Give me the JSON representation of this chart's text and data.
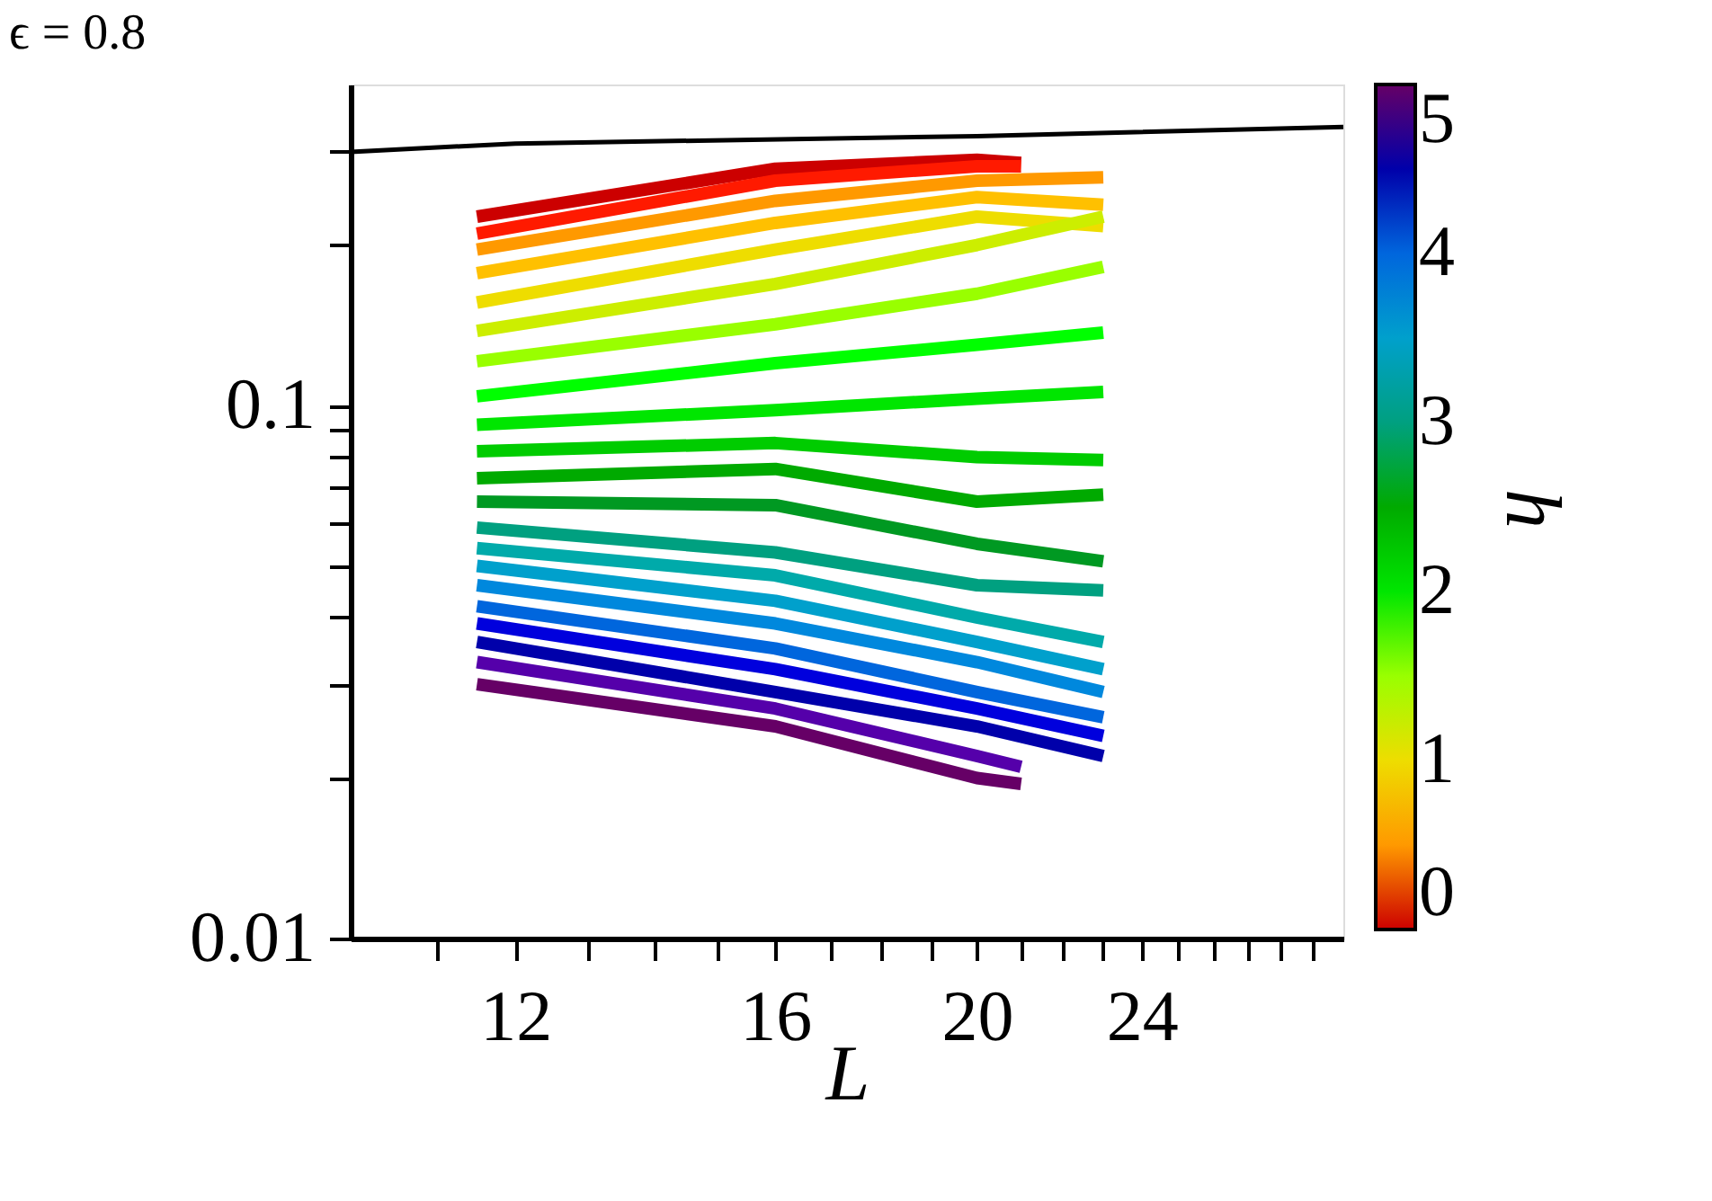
{
  "chart_data": {
    "type": "line",
    "title": "ϵ = 0.8",
    "xlabel": "L",
    "clabel": "h",
    "clim": [
      0,
      5
    ],
    "cticks": [
      0,
      1,
      2,
      3,
      4,
      5
    ],
    "log": "xy",
    "xlim": [
      10,
      30
    ],
    "ylim": [
      0.01,
      0.4
    ],
    "grid": false,
    "marker": "none",
    "line_style": "solid",
    "xticks": [
      {
        "value": 11,
        "label": null
      },
      12,
      {
        "value": 13,
        "label": null
      },
      {
        "value": 14,
        "label": null
      },
      {
        "value": 15,
        "label": null
      },
      16,
      {
        "value": 17,
        "label": null
      },
      {
        "value": 18,
        "label": null
      },
      {
        "value": 19,
        "label": null
      },
      20,
      {
        "value": 21,
        "label": null
      },
      {
        "value": 22,
        "label": null
      },
      {
        "value": 23,
        "label": null
      },
      24,
      {
        "value": 25,
        "label": null
      },
      {
        "value": 26,
        "label": null
      },
      {
        "value": 27,
        "label": null
      },
      {
        "value": 28,
        "label": null
      },
      {
        "value": 29,
        "label": null
      }
    ],
    "yticks": [
      0.01,
      {
        "value": 0.02,
        "label": null
      },
      {
        "value": 0.03,
        "label": null
      },
      {
        "value": 0.04,
        "label": null
      },
      {
        "value": 0.05,
        "label": null
      },
      {
        "value": 0.06,
        "label": null
      },
      {
        "value": 0.07,
        "label": null
      },
      {
        "value": 0.08,
        "label": null
      },
      {
        "value": 0.09,
        "label": null
      },
      0.1,
      {
        "value": 0.2,
        "label": null
      },
      {
        "value": 0.3,
        "label": null
      }
    ],
    "series": [
      {
        "color": "#000000",
        "x": [
          10,
          12,
          20,
          30
        ],
        "values": [
          0.299,
          0.31,
          0.32,
          0.333
        ]
      },
      {
        "color": "#cc0000",
        "x": [
          11.5,
          16,
          20,
          21
        ],
        "values": [
          0.226,
          0.278,
          0.289,
          0.285
        ]
      },
      {
        "color": "#ff1a00",
        "x": [
          11.5,
          16,
          20,
          21
        ],
        "values": [
          0.21,
          0.264,
          0.281,
          0.281
        ]
      },
      {
        "color": "#ff9900",
        "x": [
          11.5,
          16,
          20,
          23
        ],
        "values": [
          0.196,
          0.242,
          0.264,
          0.268
        ]
      },
      {
        "color": "#ffc000",
        "x": [
          11.5,
          16,
          20,
          23
        ],
        "values": [
          0.177,
          0.22,
          0.246,
          0.238
        ]
      },
      {
        "color": "#eedd00",
        "x": [
          11.5,
          16,
          20,
          23
        ],
        "values": [
          0.156,
          0.196,
          0.226,
          0.217
        ]
      },
      {
        "color": "#ccee00",
        "x": [
          11.5,
          16,
          20,
          23
        ],
        "values": [
          0.138,
          0.169,
          0.2,
          0.226
        ]
      },
      {
        "color": "#99ff00",
        "x": [
          11.5,
          16,
          20,
          23
        ],
        "values": [
          0.121,
          0.142,
          0.162,
          0.182
        ]
      },
      {
        "color": "#00ff00",
        "x": [
          11.5,
          16,
          20,
          23
        ],
        "values": [
          0.104,
          0.12,
          0.13,
          0.137
        ]
      },
      {
        "color": "#00e600",
        "x": [
          11.5,
          16,
          20,
          23
        ],
        "values": [
          0.092,
          0.098,
          0.103,
          0.106
        ]
      },
      {
        "color": "#00cc00",
        "x": [
          11.5,
          16,
          20,
          23
        ],
        "values": [
          0.082,
          0.085,
          0.08,
          0.079
        ]
      },
      {
        "color": "#00aa00",
        "x": [
          11.5,
          16,
          20,
          23
        ],
        "values": [
          0.073,
          0.076,
          0.066,
          0.068
        ]
      },
      {
        "color": "#009922",
        "x": [
          11.5,
          16,
          20,
          23
        ],
        "values": [
          0.066,
          0.065,
          0.055,
          0.051
        ]
      },
      {
        "color": "#00a080",
        "x": [
          11.5,
          16,
          20,
          23
        ],
        "values": [
          0.059,
          0.053,
          0.046,
          0.045
        ]
      },
      {
        "color": "#00aaaa",
        "x": [
          11.5,
          16,
          20,
          23
        ],
        "values": [
          0.054,
          0.048,
          0.04,
          0.036
        ]
      },
      {
        "color": "#00a0cc",
        "x": [
          11.5,
          16,
          20,
          23
        ],
        "values": [
          0.05,
          0.043,
          0.036,
          0.032
        ]
      },
      {
        "color": "#0088dd",
        "x": [
          11.5,
          16,
          20,
          23
        ],
        "values": [
          0.046,
          0.039,
          0.033,
          0.029
        ]
      },
      {
        "color": "#0066dd",
        "x": [
          11.5,
          16,
          20,
          23
        ],
        "values": [
          0.042,
          0.035,
          0.029,
          0.026
        ]
      },
      {
        "color": "#0000dd",
        "x": [
          11.5,
          16,
          20,
          23
        ],
        "values": [
          0.039,
          0.032,
          0.027,
          0.024
        ]
      },
      {
        "color": "#0000aa",
        "x": [
          11.5,
          16,
          20,
          23
        ],
        "values": [
          0.036,
          0.029,
          0.025,
          0.022
        ]
      },
      {
        "color": "#5500aa",
        "x": [
          11.5,
          16,
          20,
          21
        ],
        "values": [
          0.033,
          0.027,
          0.022,
          0.021
        ]
      },
      {
        "color": "#660066",
        "x": [
          11.5,
          16,
          20,
          21
        ],
        "values": [
          0.03,
          0.025,
          0.02,
          0.0195
        ]
      }
    ]
  }
}
